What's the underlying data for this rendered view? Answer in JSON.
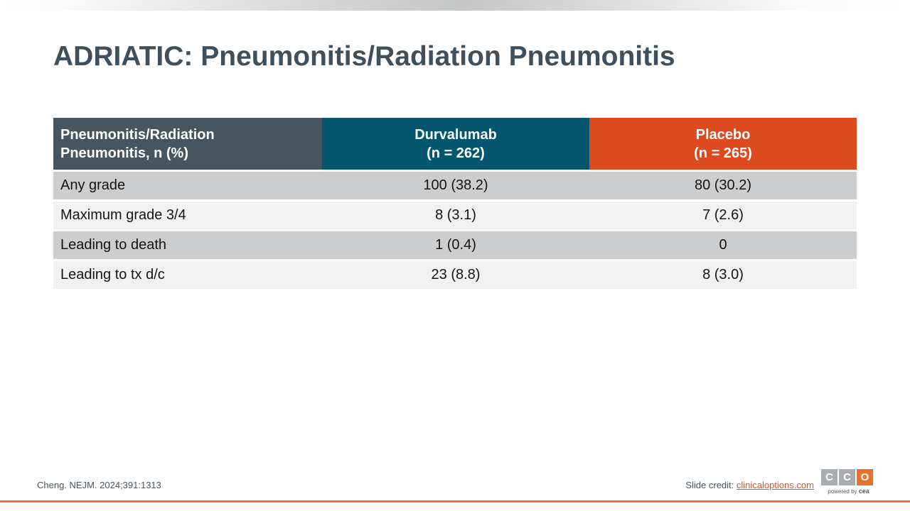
{
  "slide": {
    "title": "ADRIATIC: Pneumonitis/Radiation Pneumonitis"
  },
  "table": {
    "columns": [
      {
        "line1": "Pneumonitis/Radiation",
        "line2": "Pneumonitis, n (%)"
      },
      {
        "line1": "Durvalumab",
        "line2": "(n = 262)"
      },
      {
        "line1": "Placebo",
        "line2": "(n = 265)"
      }
    ],
    "rows": [
      {
        "label": "Any grade",
        "durvalumab": "100 (38.2)",
        "placebo": "80 (30.2)"
      },
      {
        "label": "Maximum grade 3/4",
        "durvalumab": "8 (3.1)",
        "placebo": "7 (2.6)"
      },
      {
        "label": "Leading to death",
        "durvalumab": "1 (0.4)",
        "placebo": "0"
      },
      {
        "label": "Leading to tx d/c",
        "durvalumab": "23 (8.8)",
        "placebo": "8 (3.0)"
      }
    ]
  },
  "footer": {
    "citation": "Cheng. NEJM. 2024;391:1313",
    "credit_label": "Slide credit: ",
    "credit_link": "clinicaloptions.com"
  },
  "logo": {
    "letter1": "C",
    "letter2": "C",
    "letter3": "O",
    "powered_by": "powered by ",
    "brand": "cea"
  },
  "colors": {
    "title_text": "#3f505c",
    "header_label_bg": "#475560",
    "header_durvalumab_bg": "#03566e",
    "header_placebo_bg": "#de4a1f",
    "row_gray": "#cccdce",
    "row_light": "#f1f1f2",
    "credit_link": "#d94f24",
    "bottom_line": "#e9714d",
    "logo_gray": "#a7adb2",
    "logo_orange": "#e8722c",
    "top_bar_gray": "#c5c6c6"
  }
}
